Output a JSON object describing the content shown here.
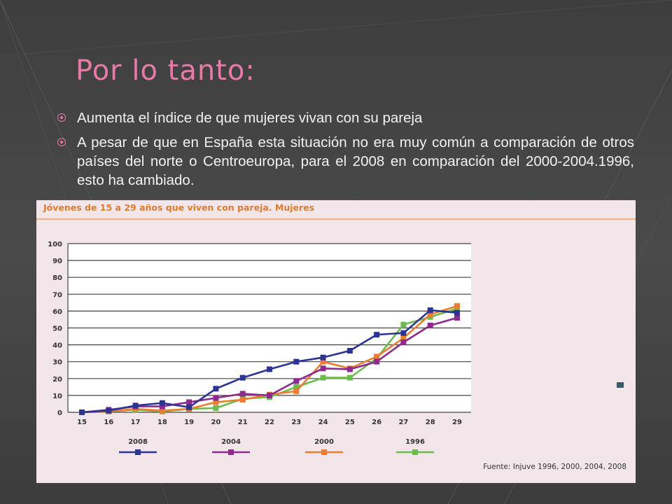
{
  "slide": {
    "title": "Por lo tanto:",
    "bullets": [
      "Aumenta el índice de que mujeres vivan con su pareja",
      "A pesar de que en España esta situación no era muy común a comparación de otros países del norte o Centroeuropa, para el 2008 en comparación del 2000-2004.1996, esto ha cambiado."
    ]
  },
  "colors": {
    "title": "#e87aa8",
    "chart_title": "#e07b2a",
    "s2008": "#2b3393",
    "s2004": "#8e2a8e",
    "s2000": "#e97e33",
    "s1996": "#6cbb4f"
  },
  "chart_data": {
    "type": "line",
    "title": "Jóvenes de 15 a 29 años que viven con pareja. Mujeres",
    "x": [
      15,
      16,
      17,
      18,
      19,
      20,
      21,
      22,
      23,
      24,
      25,
      26,
      27,
      28,
      29
    ],
    "ylim": [
      0,
      100
    ],
    "yticks": [
      0,
      10,
      20,
      30,
      40,
      50,
      60,
      70,
      80,
      90,
      100
    ],
    "grid": true,
    "legend_position": "bottom",
    "series": [
      {
        "name": "2008",
        "color": "#2b3393",
        "values": [
          0,
          1,
          4,
          5.5,
          3,
          14,
          20.5,
          25.5,
          30,
          32.5,
          36.5,
          46,
          47,
          60.5,
          59
        ]
      },
      {
        "name": "2004",
        "color": "#8e2a8e",
        "values": [
          0,
          1.5,
          3.5,
          3.5,
          6,
          8.5,
          11,
          10,
          18.5,
          26,
          25.5,
          30,
          41.5,
          51.5,
          56
        ]
      },
      {
        "name": "2000",
        "color": "#e97e33",
        "values": [
          0,
          0.5,
          2,
          1,
          2,
          6,
          7.5,
          10.5,
          12.5,
          30,
          26,
          33,
          44,
          58,
          63
        ]
      },
      {
        "name": "1996",
        "color": "#6cbb4f",
        "values": [
          0,
          0.5,
          1.5,
          0.5,
          2,
          2.5,
          8,
          9,
          15,
          20.5,
          20.5,
          32,
          52,
          56.5,
          61.5
        ]
      }
    ],
    "source": "Fuente: Injuve 1996, 2000, 2004, 2008"
  }
}
